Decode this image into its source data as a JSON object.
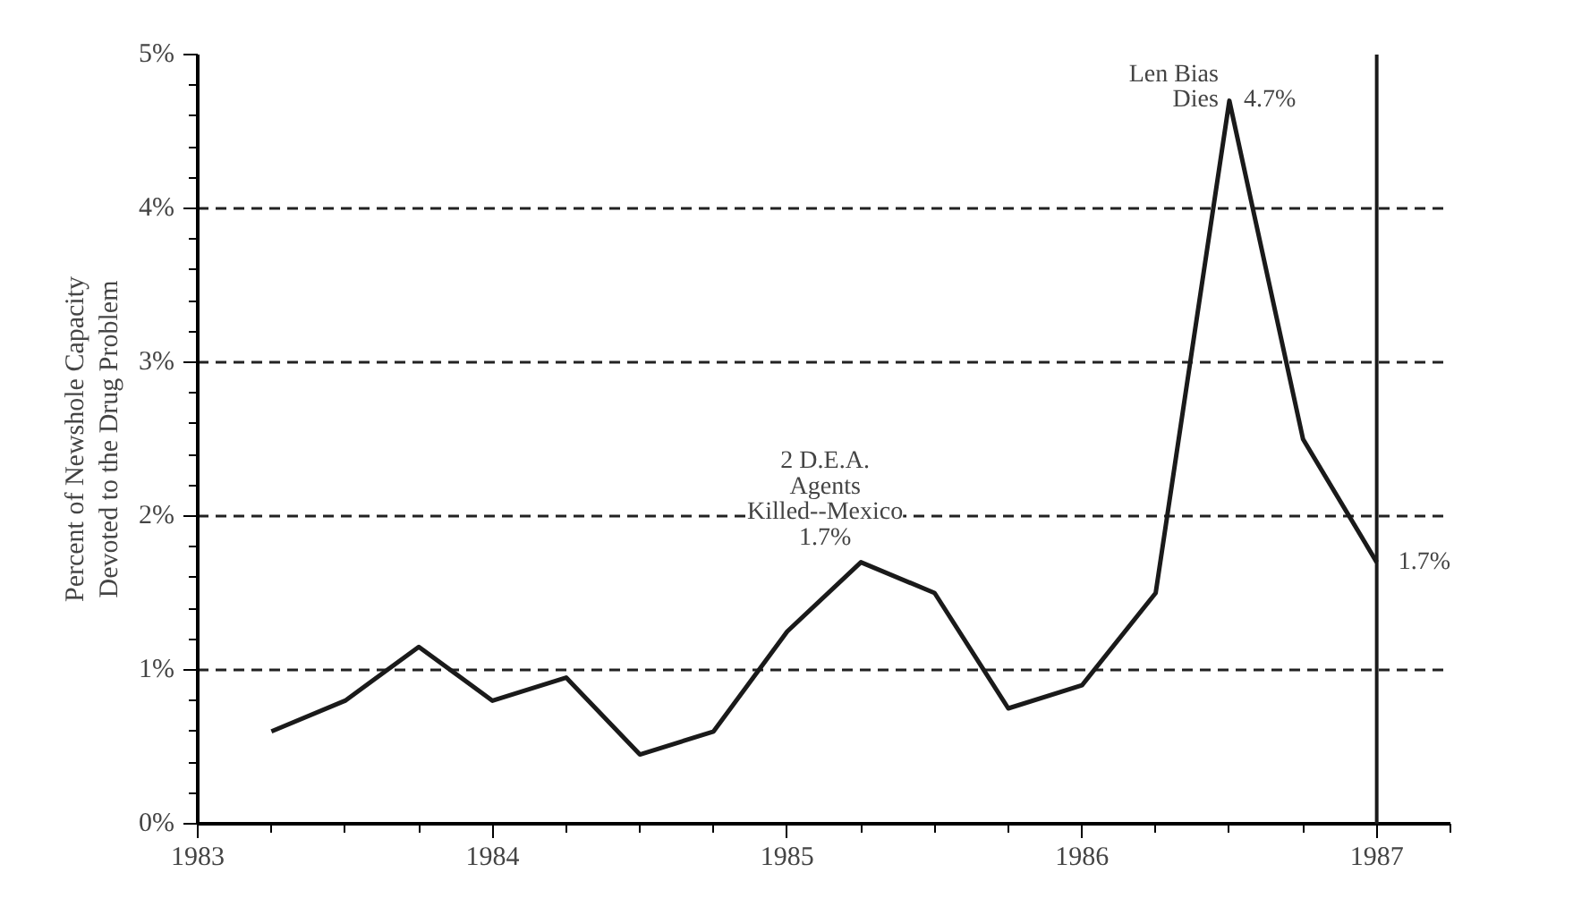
{
  "chart_data": {
    "type": "line",
    "ylabel": "Percent of Newshole Capacity\nDevoted to the Drug Problem",
    "x": [
      1983.25,
      1983.5,
      1983.75,
      1984,
      1984.25,
      1984.5,
      1984.75,
      1985,
      1985.25,
      1985.5,
      1985.75,
      1986,
      1986.25,
      1986.5,
      1986.75,
      1987
    ],
    "series": [
      {
        "color": "#1a1a1a",
        "values": [
          0.6,
          0.8,
          1.15,
          0.8,
          0.95,
          0.45,
          0.6,
          1.25,
          1.7,
          1.5,
          0.75,
          0.9,
          1.5,
          4.7,
          2.5,
          1.7
        ]
      }
    ],
    "xlim": [
      1983,
      1987.25
    ],
    "xticks": [
      1983,
      1984,
      1985,
      1986,
      1987
    ],
    "ylim": [
      0,
      5
    ],
    "yticks": [
      {
        "value": 0,
        "label": "0%"
      },
      {
        "value": 1,
        "label": "1%"
      },
      {
        "value": 2,
        "label": "2%"
      },
      {
        "value": 3,
        "label": "3%"
      },
      {
        "value": 4,
        "label": "4%"
      },
      {
        "value": 5,
        "label": "5%"
      }
    ],
    "grid": "y",
    "marker": "none",
    "line_style": "solid",
    "ref_lines": [
      {
        "axis": "x",
        "value": 1987,
        "color": "#1a1a1a",
        "line_style": "solid"
      }
    ],
    "annotations": [
      {
        "text": "2 D.E.A.\nAgents\nKilled--Mexico\n1.7%",
        "x": 1985.25,
        "y": 1.7
      },
      {
        "text": "Len Bias\nDies",
        "x": 1986.5,
        "y": 4.7
      },
      {
        "text": "4.7%",
        "x": 1986.5,
        "y": 4.7
      },
      {
        "text": "1.7%",
        "x": 1987,
        "y": 1.7
      }
    ]
  }
}
